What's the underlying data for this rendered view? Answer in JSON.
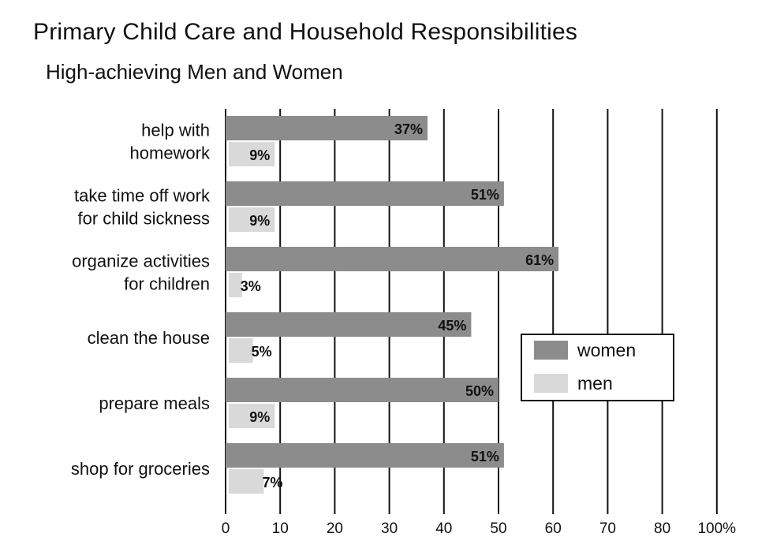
{
  "title": "Primary Child Care and Household Responsibilities",
  "subtitle": "High-achieving Men and Women",
  "chart_data": {
    "type": "bar",
    "orientation": "horizontal",
    "title": "Primary Child Care and Household Responsibilities",
    "subtitle": "High-achieving Men and Women",
    "categories": [
      [
        "help with",
        "homework"
      ],
      [
        "take time off work",
        "for child sickness"
      ],
      [
        "organize activities",
        "for children"
      ],
      [
        "clean the house"
      ],
      [
        "prepare meals"
      ],
      [
        "shop for groceries"
      ]
    ],
    "series": [
      {
        "name": "women",
        "color": "#8c8c8c",
        "values": [
          37,
          51,
          61,
          45,
          50,
          51
        ],
        "labels": [
          "37%",
          "51%",
          "61%",
          "45%",
          "50%",
          "51%"
        ]
      },
      {
        "name": "men",
        "color": "#d9d9d9",
        "values": [
          9,
          9,
          3,
          5,
          9,
          7
        ],
        "labels": [
          "9%",
          "9%",
          "3%",
          "5%",
          "9%",
          "7%"
        ]
      }
    ],
    "xlim": [
      0,
      90
    ],
    "xticks": [
      "0",
      "10",
      "20",
      "30",
      "40",
      "50",
      "60",
      "70",
      "80",
      "100%"
    ],
    "grid": true,
    "legend_position": "right"
  }
}
